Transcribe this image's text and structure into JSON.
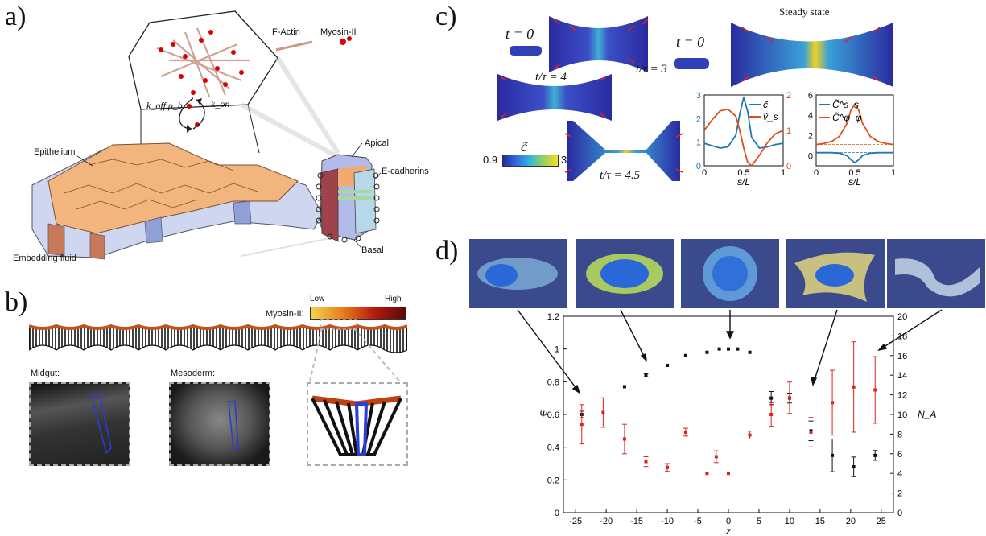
{
  "panels": {
    "a": {
      "label": "a)",
      "legend": {
        "factin": "F-Actin",
        "myosin": "Myosin-II"
      },
      "rates": {
        "koff": "k_off ρ_b",
        "kon": "k_on"
      },
      "tissue_labels": {
        "epithelium": "Epithelium",
        "fluid": "Embedding fluid"
      },
      "cell_labels": {
        "apical": "Apical",
        "ecad": "E-cadherins",
        "basal": "Basal"
      }
    },
    "b": {
      "label": "b)",
      "colorbar": {
        "title": "Myosin-II:",
        "low": "Low",
        "high": "High"
      },
      "insets": {
        "midgut": "Midgut:",
        "mesoderm": "Mesoderm:"
      }
    },
    "c": {
      "label": "c)",
      "times": {
        "t0a": "t = 0",
        "t3": "t/τ = 3",
        "t4": "t/τ = 4",
        "t45": "t/τ = 4.5",
        "t0b": "t = 0",
        "steady": "Steady state"
      },
      "colorbar": {
        "title": "c̃",
        "min": "0.9",
        "max": "3"
      }
    },
    "d": {
      "label": "d)"
    }
  },
  "chart_data": [
    {
      "type": "line",
      "xlabel": "s/L",
      "x_ticks": [
        "0",
        "0.5",
        "1"
      ],
      "y_left_ticks": [
        "0",
        "1",
        "2",
        "3"
      ],
      "y_right_ticks": [
        "0",
        "1",
        "2"
      ],
      "ylim_left": [
        0,
        3
      ],
      "ylim_right": [
        0,
        2
      ],
      "legend": [
        "c̃",
        "ṽ_s"
      ],
      "series": [
        {
          "name": "c̃",
          "axis": "left",
          "color": "#1f77b4",
          "x": [
            0,
            0.1,
            0.2,
            0.3,
            0.4,
            0.45,
            0.5,
            0.55,
            0.6,
            0.7,
            0.8,
            0.9,
            1.0
          ],
          "y": [
            0.95,
            0.85,
            0.75,
            0.8,
            1.3,
            2.2,
            2.9,
            2.3,
            1.2,
            0.75,
            0.8,
            0.9,
            0.95
          ]
        },
        {
          "name": "ṽ_s",
          "axis": "right",
          "color": "#d95319",
          "x": [
            0,
            0.1,
            0.2,
            0.3,
            0.4,
            0.45,
            0.5,
            0.55,
            0.6,
            0.7,
            0.8,
            0.9,
            1.0
          ],
          "y": [
            1.0,
            1.3,
            1.55,
            1.6,
            1.4,
            1.0,
            0.5,
            0.1,
            0.0,
            0.3,
            0.65,
            0.9,
            1.0
          ]
        }
      ]
    },
    {
      "type": "line",
      "xlabel": "s/L",
      "x_ticks": [
        "0",
        "0.5",
        "1"
      ],
      "y_left_ticks": [
        "0",
        "2",
        "4",
        "6"
      ],
      "ylim_left": [
        -1,
        6
      ],
      "legend": [
        "C̃^s_s",
        "C̃^φ_φ"
      ],
      "series": [
        {
          "name": "C̃^s_s",
          "color": "#1f77b4",
          "x": [
            0,
            0.1,
            0.2,
            0.3,
            0.4,
            0.45,
            0.5,
            0.55,
            0.6,
            0.7,
            0.8,
            0.9,
            1.0
          ],
          "y": [
            0.3,
            0.3,
            0.3,
            0.25,
            0.0,
            -0.4,
            -0.7,
            -0.4,
            0.0,
            0.25,
            0.3,
            0.3,
            0.3
          ]
        },
        {
          "name": "C̃^φ_φ",
          "color": "#d95319",
          "x": [
            0,
            0.1,
            0.2,
            0.3,
            0.4,
            0.45,
            0.5,
            0.55,
            0.6,
            0.7,
            0.8,
            0.9,
            1.0
          ],
          "y": [
            1.1,
            1.2,
            1.4,
            1.9,
            3.2,
            4.5,
            5.1,
            4.5,
            3.2,
            1.9,
            1.4,
            1.2,
            1.1
          ]
        }
      ]
    },
    {
      "type": "scatter",
      "xlabel": "z",
      "ylabel": "Ψ",
      "ylabel_right": "N_A",
      "xlim": [
        -27,
        27
      ],
      "ylim": [
        0,
        1.2
      ],
      "ylim_right": [
        0,
        20
      ],
      "x_ticks": [
        "-25",
        "-20",
        "-15",
        "-10",
        "-5",
        "0",
        "5",
        "10",
        "15",
        "20",
        "25"
      ],
      "y_ticks": [
        "0",
        "0.2",
        "0.4",
        "0.6",
        "0.8",
        "1",
        "1.2"
      ],
      "y_right_ticks": [
        "0",
        "2",
        "4",
        "6",
        "8",
        "10",
        "12",
        "14",
        "16",
        "18",
        "20"
      ],
      "series": [
        {
          "name": "Ψ",
          "color": "#111111",
          "points": [
            [
              -24,
              0.6,
              0.02
            ],
            [
              -17,
              0.77,
              0
            ],
            [
              -13.5,
              0.84,
              0.01
            ],
            [
              -10,
              0.9,
              0
            ],
            [
              -7,
              0.96,
              0
            ],
            [
              -3.5,
              0.98,
              0
            ],
            [
              -1.5,
              1.0,
              0
            ],
            [
              0,
              1.0,
              0
            ],
            [
              1.5,
              1.0,
              0
            ],
            [
              3.5,
              0.98,
              0
            ],
            [
              7,
              0.7,
              0.04
            ],
            [
              10,
              0.7,
              0.03
            ],
            [
              13.5,
              0.5,
              0.06
            ],
            [
              17,
              0.35,
              0.1
            ],
            [
              20.5,
              0.28,
              0.06
            ],
            [
              24,
              0.35,
              0.03
            ]
          ]
        },
        {
          "name": "N_A",
          "color": "#e02020",
          "points": [
            [
              -24,
              9,
              2
            ],
            [
              -20.5,
              10.2,
              1.5
            ],
            [
              -17,
              7.5,
              1.5
            ],
            [
              -13.5,
              5.2,
              0.5
            ],
            [
              -10,
              4.6,
              0.4
            ],
            [
              -7,
              8.2,
              0.4
            ],
            [
              -3.5,
              4,
              0
            ],
            [
              -2,
              5.7,
              0.6
            ],
            [
              0,
              4,
              0
            ],
            [
              3.5,
              7.9,
              0.4
            ],
            [
              7,
              10,
              1.2
            ],
            [
              10,
              11.7,
              1.6
            ],
            [
              13.5,
              8.2,
              1.5
            ],
            [
              17,
              11.2,
              3.3
            ],
            [
              20.5,
              12.8,
              4.6
            ],
            [
              24,
              12.5,
              3.4
            ]
          ]
        }
      ]
    }
  ]
}
